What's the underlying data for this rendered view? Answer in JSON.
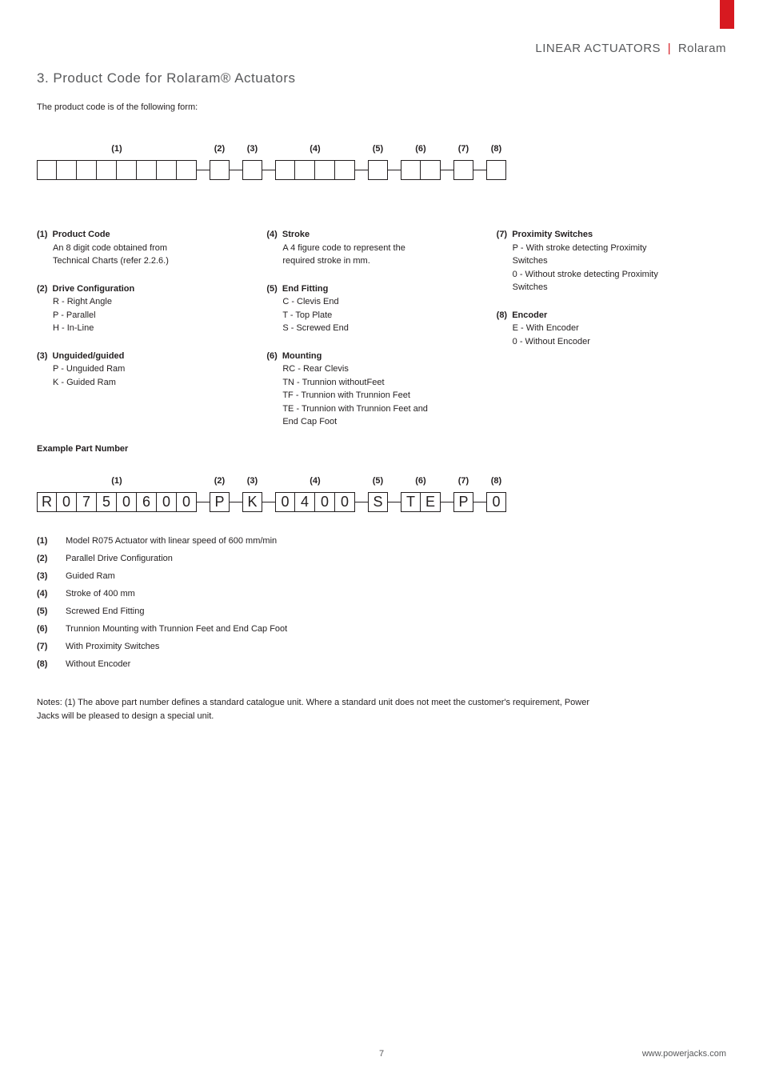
{
  "header": {
    "category": "LINEAR ACTUATORS",
    "product": "Rolaram"
  },
  "section_title": "3. Product Code for Rolaram® Actuators",
  "intro": "The product code is of the following form:",
  "template": {
    "groups": [
      {
        "label": "(1)",
        "boxes": 8
      },
      {
        "label": "(2)",
        "boxes": 1
      },
      {
        "label": "(3)",
        "boxes": 1
      },
      {
        "label": "(4)",
        "boxes": 4
      },
      {
        "label": "(5)",
        "boxes": 1
      },
      {
        "label": "(6)",
        "boxes": 2
      },
      {
        "label": "(7)",
        "boxes": 1
      },
      {
        "label": "(8)",
        "boxes": 1
      }
    ]
  },
  "legend": {
    "col1": [
      {
        "num": "(1)",
        "title": "Product Code",
        "lines": [
          "An 8 digit code obtained from",
          "Technical Charts (refer 2.2.6.)"
        ]
      },
      {
        "num": "(2)",
        "title": "Drive Configuration",
        "lines": [
          "R - Right Angle",
          "P - Parallel",
          "H - In-Line"
        ]
      },
      {
        "num": "(3)",
        "title": "Unguided/guided",
        "lines": [
          "P - Unguided Ram",
          "K - Guided Ram"
        ]
      }
    ],
    "col2": [
      {
        "num": "(4)",
        "title": "Stroke",
        "lines": [
          "A 4 figure code to represent the",
          "required stroke in mm."
        ]
      },
      {
        "num": "(5)",
        "title": "End Fitting",
        "lines": [
          "C - Clevis End",
          "T - Top Plate",
          "S - Screwed End"
        ]
      },
      {
        "num": "(6)",
        "title": "Mounting",
        "lines": [
          "RC  - Rear Clevis",
          "TN  - Trunnion withoutFeet",
          "TF  - Trunnion with Trunnion Feet",
          "TE  - Trunnion with Trunnion Feet  and",
          "End Cap Foot"
        ]
      }
    ],
    "col3": [
      {
        "num": "(7)",
        "title": "Proximity Switches",
        "lines": [
          "P - With stroke detecting Proximity",
          "Switches",
          "0 - Without stroke detecting Proximity",
          "Switches"
        ]
      },
      {
        "num": "(8)",
        "title": "Encoder",
        "lines": [
          "E - With Encoder",
          "0 - Without Encoder"
        ]
      }
    ]
  },
  "example_title": "Example Part Number",
  "example": {
    "groups": [
      {
        "label": "(1)",
        "chars": [
          "R",
          "0",
          "7",
          "5",
          "0",
          "6",
          "0",
          "0"
        ]
      },
      {
        "label": "(2)",
        "chars": [
          "P"
        ]
      },
      {
        "label": "(3)",
        "chars": [
          "K"
        ]
      },
      {
        "label": "(4)",
        "chars": [
          "0",
          "4",
          "0",
          "0"
        ]
      },
      {
        "label": "(5)",
        "chars": [
          "S"
        ]
      },
      {
        "label": "(6)",
        "chars": [
          "T",
          "E"
        ]
      },
      {
        "label": "(7)",
        "chars": [
          "P"
        ]
      },
      {
        "label": "(8)",
        "chars": [
          "0"
        ]
      }
    ]
  },
  "example_legend": [
    {
      "num": "(1)",
      "text": "Model R075 Actuator with linear speed of 600 mm/min"
    },
    {
      "num": "(2)",
      "text": "Parallel Drive Configuration"
    },
    {
      "num": "(3)",
      "text": "Guided Ram"
    },
    {
      "num": "(4)",
      "text": "Stroke of 400 mm"
    },
    {
      "num": "(5)",
      "text": "Screwed End Fitting"
    },
    {
      "num": "(6)",
      "text": "Trunnion Mounting with Trunnion Feet and End Cap Foot"
    },
    {
      "num": "(7)",
      "text": "With Proximity Switches"
    },
    {
      "num": "(8)",
      "text": "Without Encoder"
    }
  ],
  "notes": "Notes: (1)  The above part number defines a standard catalogue unit. Where a standard unit does not meet the customer's requirement, Power Jacks will be pleased to design a special unit.",
  "footer": {
    "page": "7",
    "url": "www.powerjacks.com"
  },
  "colors": {
    "red": "#d71920",
    "text": "#231f20",
    "grey": "#58595b"
  }
}
